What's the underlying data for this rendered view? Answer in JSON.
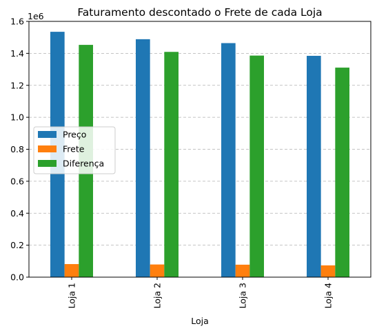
{
  "chart_data": {
    "type": "bar",
    "title": "Faturamento descontado o Frete de cada Loja",
    "xlabel": "Loja",
    "ylabel": "",
    "offset_label": "1e6",
    "categories": [
      "Loja 1",
      "Loja 2",
      "Loja 3",
      "Loja 4"
    ],
    "series": [
      {
        "name": "Preço",
        "color": "#1f77b4",
        "values": [
          1534849,
          1488459,
          1464025,
          1384497
        ]
      },
      {
        "name": "Frete",
        "color": "#ff7f0e",
        "values": [
          81838,
          79314,
          78020,
          73755
        ]
      },
      {
        "name": "Diferença",
        "color": "#2ca02c",
        "values": [
          1453011,
          1409145,
          1386005,
          1310742
        ]
      }
    ],
    "ylim": [
      0,
      1.6
    ],
    "yscale_multiplier": 1000000,
    "y_ticks": [
      "0.0",
      "0.2",
      "0.4",
      "0.6",
      "0.8",
      "1.0",
      "1.2",
      "1.4",
      "1.6"
    ],
    "grid": "y-dashed",
    "legend_position": "center-left"
  }
}
